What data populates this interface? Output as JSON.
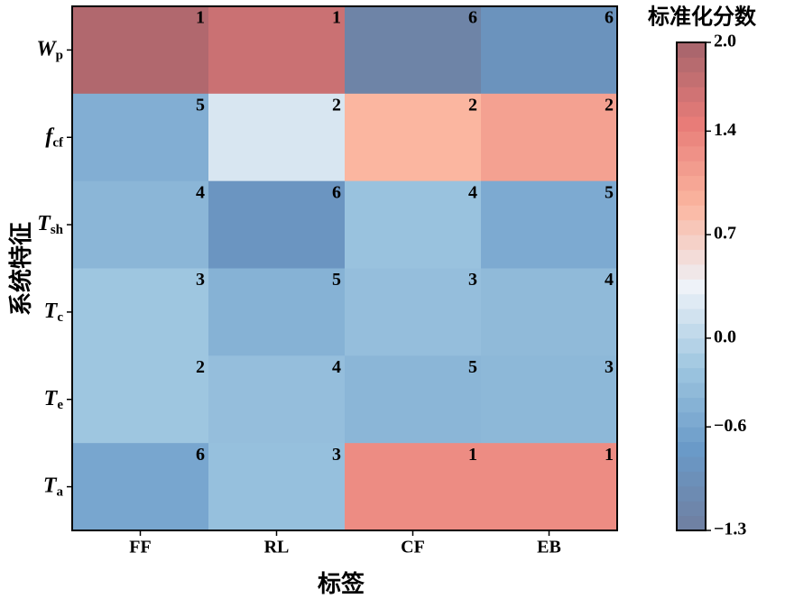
{
  "chart_data": {
    "type": "heatmap",
    "x_label": "标签",
    "y_label": "系统特征",
    "colorbar_label": "标准化分数",
    "categories": [
      "FF",
      "RL",
      "CF",
      "EB"
    ],
    "rows": [
      {
        "symbol": "W",
        "subscript": "p"
      },
      {
        "symbol": "f",
        "subscript": "cf"
      },
      {
        "symbol": "T",
        "subscript": "sh"
      },
      {
        "symbol": "T",
        "subscript": "c"
      },
      {
        "symbol": "T",
        "subscript": "e"
      },
      {
        "symbol": "T",
        "subscript": "a"
      }
    ],
    "values": [
      [
        1.9,
        1.7,
        -1.2,
        -0.9
      ],
      [
        -0.5,
        0.2,
        0.9,
        1.1
      ],
      [
        -0.4,
        -0.85,
        -0.25,
        -0.55
      ],
      [
        -0.2,
        -0.45,
        -0.3,
        -0.35
      ],
      [
        -0.2,
        -0.3,
        -0.4,
        -0.38
      ],
      [
        -0.6,
        -0.28,
        1.3,
        1.3
      ]
    ],
    "annotations": [
      [
        1,
        1,
        6,
        6
      ],
      [
        5,
        2,
        2,
        2
      ],
      [
        4,
        6,
        4,
        5
      ],
      [
        3,
        5,
        3,
        4
      ],
      [
        2,
        4,
        5,
        3
      ],
      [
        6,
        3,
        1,
        1
      ]
    ],
    "clim": [
      -1.3,
      2.0
    ],
    "cticks": [
      {
        "value": 2.0,
        "label": "2.0"
      },
      1.4,
      0.7,
      {
        "value": 0.0,
        "label": "0.0"
      },
      {
        "value": -0.6,
        "label": "−0.6"
      },
      {
        "value": -1.3,
        "label": "−1.3"
      }
    ],
    "colormap": [
      "#6f7fa0",
      "#6a9ac8",
      "#9ec6e0",
      "#eef2f8",
      "#fbb6a0",
      "#e87c78",
      "#a5646c"
    ]
  }
}
